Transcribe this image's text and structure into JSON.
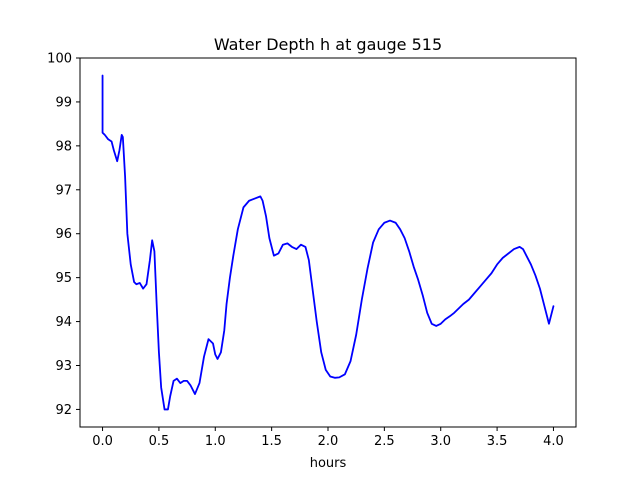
{
  "chart_data": {
    "type": "line",
    "title": "Water Depth h at gauge 515",
    "xlabel": "hours",
    "ylabel": "",
    "xlim": [
      -0.2,
      4.2
    ],
    "ylim": [
      91.6,
      100
    ],
    "xticks": [
      0.0,
      0.5,
      1.0,
      1.5,
      2.0,
      2.5,
      3.0,
      3.5,
      4.0
    ],
    "xtick_labels": [
      "0.0",
      "0.5",
      "1.0",
      "1.5",
      "2.0",
      "2.5",
      "3.0",
      "3.5",
      "4.0"
    ],
    "yticks": [
      92,
      93,
      94,
      95,
      96,
      97,
      98,
      99,
      100
    ],
    "ytick_labels": [
      "92",
      "93",
      "94",
      "95",
      "96",
      "97",
      "98",
      "99",
      "100"
    ],
    "grid": false,
    "legend": null,
    "series": [
      {
        "color": "#0000ff",
        "x": [
          0.0,
          0.0,
          0.0,
          0.02,
          0.05,
          0.08,
          0.1,
          0.13,
          0.15,
          0.17,
          0.18,
          0.2,
          0.22,
          0.25,
          0.28,
          0.3,
          0.33,
          0.36,
          0.39,
          0.42,
          0.44,
          0.46,
          0.47,
          0.48,
          0.5,
          0.52,
          0.55,
          0.58,
          0.6,
          0.63,
          0.66,
          0.69,
          0.72,
          0.75,
          0.78,
          0.82,
          0.86,
          0.9,
          0.94,
          0.98,
          1.0,
          1.02,
          1.05,
          1.08,
          1.1,
          1.13,
          1.16,
          1.2,
          1.25,
          1.3,
          1.35,
          1.4,
          1.42,
          1.45,
          1.48,
          1.52,
          1.56,
          1.6,
          1.64,
          1.68,
          1.72,
          1.76,
          1.8,
          1.83,
          1.86,
          1.9,
          1.94,
          1.98,
          2.02,
          2.06,
          2.1,
          2.15,
          2.2,
          2.25,
          2.3,
          2.35,
          2.4,
          2.45,
          2.5,
          2.55,
          2.6,
          2.64,
          2.68,
          2.72,
          2.76,
          2.8,
          2.84,
          2.88,
          2.92,
          2.96,
          3.0,
          3.04,
          3.08,
          3.12,
          3.16,
          3.2,
          3.25,
          3.3,
          3.35,
          3.4,
          3.45,
          3.5,
          3.55,
          3.6,
          3.65,
          3.7,
          3.73,
          3.76,
          3.8,
          3.84,
          3.88,
          3.92,
          3.96,
          4.0
        ],
        "y": [
          99.6,
          98.5,
          98.3,
          98.25,
          98.15,
          98.1,
          97.9,
          97.65,
          97.9,
          98.25,
          98.2,
          97.3,
          96.0,
          95.3,
          94.9,
          94.85,
          94.88,
          94.75,
          94.85,
          95.4,
          95.85,
          95.6,
          95.0,
          94.4,
          93.3,
          92.5,
          92.0,
          92.0,
          92.3,
          92.65,
          92.7,
          92.6,
          92.65,
          92.65,
          92.55,
          92.35,
          92.6,
          93.2,
          93.6,
          93.5,
          93.25,
          93.15,
          93.3,
          93.8,
          94.4,
          95.0,
          95.5,
          96.1,
          96.6,
          96.75,
          96.8,
          96.85,
          96.75,
          96.4,
          95.9,
          95.5,
          95.55,
          95.75,
          95.78,
          95.7,
          95.65,
          95.75,
          95.7,
          95.4,
          94.8,
          94.0,
          93.3,
          92.9,
          92.75,
          92.72,
          92.73,
          92.8,
          93.1,
          93.7,
          94.5,
          95.2,
          95.8,
          96.1,
          96.25,
          96.3,
          96.25,
          96.1,
          95.9,
          95.6,
          95.25,
          94.95,
          94.6,
          94.2,
          93.95,
          93.9,
          93.95,
          94.05,
          94.12,
          94.2,
          94.3,
          94.4,
          94.5,
          94.65,
          94.8,
          94.95,
          95.1,
          95.3,
          95.45,
          95.55,
          95.65,
          95.7,
          95.65,
          95.5,
          95.3,
          95.05,
          94.75,
          94.35,
          93.95,
          94.35
        ]
      }
    ]
  }
}
